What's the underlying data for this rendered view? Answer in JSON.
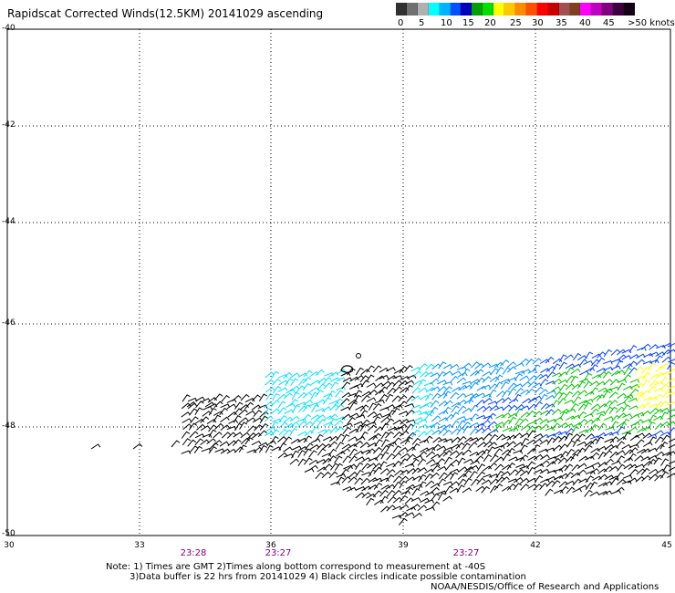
{
  "title": "Rapidscat Corrected Winds(12.5KM) 20141029 ascending",
  "color_scale": {
    "colors": [
      "#303030",
      "#707070",
      "#b0b0b0",
      "#00ffff",
      "#00b4ff",
      "#0050ff",
      "#0000c0",
      "#00a000",
      "#00e000",
      "#ffff00",
      "#ffc800",
      "#ff8c00",
      "#ff5000",
      "#ff0000",
      "#c80000",
      "#a05050",
      "#804020",
      "#ff00ff",
      "#c000c0",
      "#800080",
      "#3c003c",
      "#140014"
    ],
    "labels": [
      "0",
      "5",
      "10",
      "15",
      "20",
      "25",
      "30",
      "35",
      "40",
      "45",
      ">50 knots"
    ]
  },
  "lat_ticks": [
    "-40",
    "-42",
    "-44",
    "-46",
    "-48",
    "-50"
  ],
  "lon_ticks": [
    "30",
    "33",
    "36",
    "39",
    "42",
    "45"
  ],
  "time_labels": [
    "23:28",
    "23:27",
    "23:27"
  ],
  "notes": [
    "Note: 1) Times are GMT 2)Times along bottom correspond to measurement at -40S",
    "3)Data buffer is 22 hrs from 20141029 4) Black circles indicate possible contamination",
    "NOAA/NESDIS/Office of Research and Applications"
  ],
  "wind_colors": {
    "light": "#00e0ff",
    "mid": "#0090ff",
    "dark_blue": "#0040ff",
    "green": "#00c000",
    "yellow": "#ffff00",
    "black": "#000000"
  }
}
